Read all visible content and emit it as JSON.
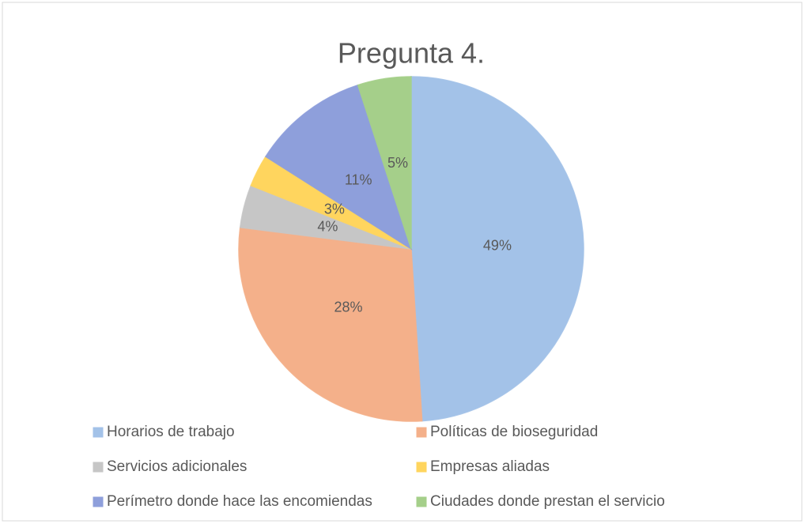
{
  "chart_data": {
    "type": "pie",
    "title": "Pregunta 4.",
    "categories": [
      "Horarios de trabajo",
      "Políticas de bioseguridad",
      "Servicios adicionales",
      "Empresas aliadas",
      "Perímetro donde hace las encomiendas",
      "Ciudades donde prestan el servicio"
    ],
    "values": [
      49,
      28,
      4,
      3,
      11,
      5
    ],
    "value_labels": [
      "49%",
      "28%",
      "4%",
      "3%",
      "11%",
      "5%"
    ],
    "colors": [
      "#a3c2e8",
      "#f4b08a",
      "#c6c6c6",
      "#ffd55e",
      "#8e9fdb",
      "#a5cf8a"
    ],
    "legend": "bottom"
  }
}
